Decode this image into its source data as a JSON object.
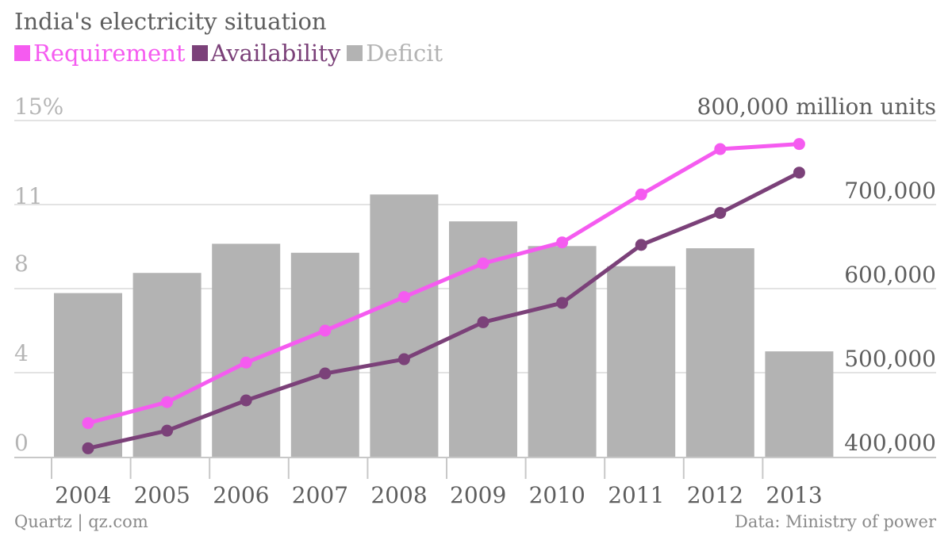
{
  "title": "India's electricity situation",
  "credit": "Quartz | qz.com",
  "source": "Data: Ministry of power",
  "colors": {
    "requirement": "#f55bf0",
    "availability": "#7b4179",
    "deficit": "#b3b3b3",
    "grid": "#e3e3e3",
    "axis": "#c8c8c8"
  },
  "chart_data": {
    "type": "bar",
    "title": "India's electricity situation",
    "categories": [
      "2004",
      "2005",
      "2006",
      "2007",
      "2008",
      "2009",
      "2010",
      "2011",
      "2012",
      "2013"
    ],
    "left_axis": {
      "ticks": [
        "15%",
        "11",
        "8",
        "4",
        "0"
      ],
      "tick_values": [
        15,
        11,
        8,
        4,
        0
      ],
      "range": [
        0,
        15
      ]
    },
    "right_axis": {
      "ticks": [
        "800,000 million units",
        "700,000",
        "600,000",
        "500,000",
        "400,000"
      ],
      "tick_values": [
        800000,
        700000,
        600000,
        500000,
        400000
      ],
      "range": [
        400000,
        800000
      ]
    },
    "series": [
      {
        "name": "Requirement",
        "axis": "right",
        "type": "line",
        "values": [
          440000,
          465000,
          512000,
          550000,
          590000,
          630000,
          655000,
          712000,
          766000,
          772000
        ]
      },
      {
        "name": "Availability",
        "axis": "right",
        "type": "line",
        "values": [
          410000,
          431000,
          467000,
          499000,
          516000,
          560000,
          583000,
          652000,
          690000,
          738000
        ]
      },
      {
        "name": "Deficit",
        "axis": "left",
        "type": "bar",
        "values": [
          7.3,
          8.2,
          9.5,
          9.1,
          11.7,
          10.5,
          9.4,
          8.5,
          9.3,
          4.7
        ]
      }
    ],
    "grid": true,
    "legend_position": "top-left"
  }
}
